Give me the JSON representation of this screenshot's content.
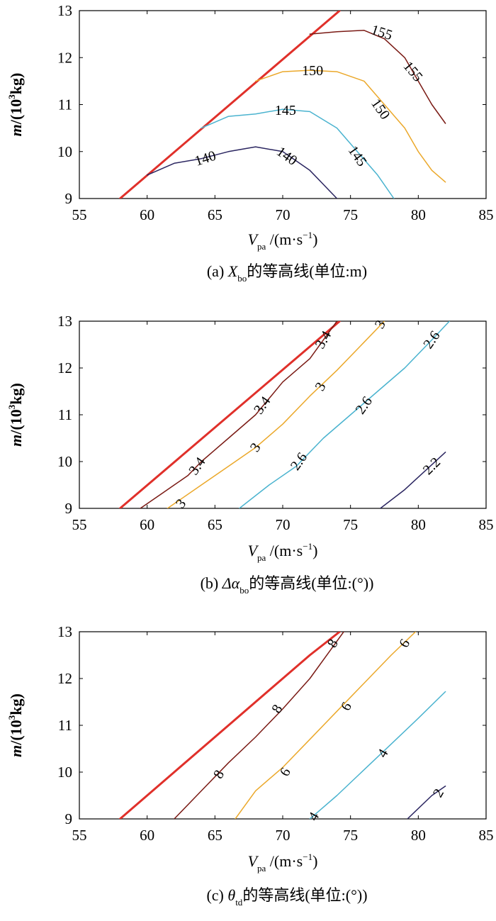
{
  "figure": {
    "axis_x_label": {
      "var": "V",
      "sub": "pa",
      "unit_pre": " /(m·s",
      "unit_sup": "−1",
      "unit_post": ")"
    },
    "axis_y_label": {
      "var": "m",
      "unit_pre": "/(10",
      "unit_sup": "3",
      "unit_post": "kg)"
    }
  },
  "colors": {
    "boundary": "#e0302a",
    "c_darkred": "#7a1a14",
    "c_orange": "#eba82a",
    "c_blue": "#4ab3cf",
    "c_navy": "#2a2560"
  },
  "chart_data": [
    {
      "type": "line",
      "caption": {
        "pre": "(a) ",
        "var": "X",
        "sub": "bo",
        "post": "的等高线(单位:m)"
      },
      "xlim": [
        55,
        85
      ],
      "ylim": [
        9,
        13
      ],
      "x_ticks": [
        55,
        60,
        65,
        70,
        75,
        80,
        85
      ],
      "y_ticks": [
        9,
        10,
        11,
        12,
        13
      ],
      "grid": false,
      "series": [
        {
          "role": "boundary",
          "color": "#e0302a",
          "width": 3,
          "points": [
            [
              58,
              9.0
            ],
            [
              74.2,
              13.0
            ]
          ]
        },
        {
          "color": "#7a1a14",
          "points": [
            [
              72,
              12.5
            ],
            [
              74,
              12.55
            ],
            [
              76,
              12.58
            ],
            [
              77.5,
              12.4
            ],
            [
              79,
              12.0
            ],
            [
              80,
              11.5
            ],
            [
              81,
              11.0
            ],
            [
              82,
              10.6
            ]
          ],
          "labels": [
            {
              "text": "155",
              "x": 77.3,
              "y": 12.53,
              "rot": 18
            },
            {
              "text": "155",
              "x": 79.6,
              "y": 11.7,
              "rot": 50
            }
          ]
        },
        {
          "color": "#eba82a",
          "points": [
            [
              68,
              11.5
            ],
            [
              70,
              11.7
            ],
            [
              72,
              11.73
            ],
            [
              74,
              11.7
            ],
            [
              76,
              11.5
            ],
            [
              77.5,
              11.0
            ],
            [
              79,
              10.5
            ],
            [
              80,
              10.0
            ],
            [
              81,
              9.6
            ],
            [
              82,
              9.35
            ]
          ],
          "labels": [
            {
              "text": "150",
              "x": 72.2,
              "y": 11.72,
              "rot": 0
            },
            {
              "text": "150",
              "x": 77.2,
              "y": 10.9,
              "rot": 55
            }
          ]
        },
        {
          "color": "#4ab3cf",
          "points": [
            [
              64,
              10.5
            ],
            [
              66,
              10.75
            ],
            [
              68,
              10.8
            ],
            [
              70,
              10.9
            ],
            [
              72,
              10.85
            ],
            [
              74,
              10.5
            ],
            [
              75.5,
              10.0
            ],
            [
              77,
              9.5
            ],
            [
              78.2,
              9.0
            ]
          ],
          "labels": [
            {
              "text": "145",
              "x": 70.2,
              "y": 10.87,
              "rot": 0
            },
            {
              "text": "145",
              "x": 75.5,
              "y": 9.9,
              "rot": 55
            }
          ]
        },
        {
          "color": "#2a2560",
          "points": [
            [
              60,
              9.5
            ],
            [
              62,
              9.75
            ],
            [
              64,
              9.85
            ],
            [
              66,
              10.0
            ],
            [
              68,
              10.1
            ],
            [
              70,
              10.0
            ],
            [
              72,
              9.6
            ],
            [
              73,
              9.3
            ],
            [
              74,
              9.0
            ]
          ],
          "labels": [
            {
              "text": "140",
              "x": 64.3,
              "y": 9.85,
              "rot": -18
            },
            {
              "text": "140",
              "x": 70.3,
              "y": 9.9,
              "rot": 35
            }
          ]
        }
      ]
    },
    {
      "type": "line",
      "caption": {
        "pre": "(b) ",
        "var": "Δα",
        "sub": "bo",
        "post": "的等高线(单位:(°))"
      },
      "xlim": [
        55,
        85
      ],
      "ylim": [
        9,
        13
      ],
      "x_ticks": [
        55,
        60,
        65,
        70,
        75,
        80,
        85
      ],
      "y_ticks": [
        9,
        10,
        11,
        12,
        13
      ],
      "grid": false,
      "series": [
        {
          "role": "boundary",
          "color": "#e0302a",
          "width": 3,
          "points": [
            [
              58,
              9.0
            ],
            [
              74.2,
              13.0
            ]
          ]
        },
        {
          "color": "#7a1a14",
          "points": [
            [
              59.5,
              9.0
            ],
            [
              61,
              9.3
            ],
            [
              62,
              9.5
            ],
            [
              63,
              9.7
            ],
            [
              64,
              10.0
            ],
            [
              66,
              10.5
            ],
            [
              68,
              11.0
            ],
            [
              70,
              11.7
            ],
            [
              72,
              12.2
            ],
            [
              73,
              12.6
            ],
            [
              74,
              13.0
            ]
          ],
          "labels": [
            {
              "text": "3.4",
              "x": 73,
              "y": 12.6,
              "rot": -60
            },
            {
              "text": "3.4",
              "x": 68.5,
              "y": 11.2,
              "rot": -55
            },
            {
              "text": "3.4",
              "x": 63.7,
              "y": 9.9,
              "rot": -55
            }
          ]
        },
        {
          "color": "#eba82a",
          "points": [
            [
              61.5,
              9.0
            ],
            [
              64,
              9.5
            ],
            [
              66,
              9.9
            ],
            [
              68,
              10.3
            ],
            [
              70,
              10.8
            ],
            [
              72,
              11.4
            ],
            [
              74,
              11.95
            ],
            [
              76,
              12.55
            ],
            [
              77.5,
              13.0
            ]
          ],
          "labels": [
            {
              "text": "3",
              "x": 77.2,
              "y": 12.93,
              "rot": -60
            },
            {
              "text": "3",
              "x": 72.8,
              "y": 11.6,
              "rot": -60
            },
            {
              "text": "3",
              "x": 68,
              "y": 10.3,
              "rot": -55
            },
            {
              "text": "3",
              "x": 62.5,
              "y": 9.1,
              "rot": -50
            }
          ]
        },
        {
          "color": "#4ab3cf",
          "points": [
            [
              66.8,
              9.0
            ],
            [
              69,
              9.5
            ],
            [
              71,
              9.9
            ],
            [
              73,
              10.5
            ],
            [
              75,
              11.0
            ],
            [
              77,
              11.5
            ],
            [
              79,
              12.0
            ],
            [
              81,
              12.6
            ],
            [
              82.3,
              13.0
            ]
          ],
          "labels": [
            {
              "text": "2.6",
              "x": 81,
              "y": 12.6,
              "rot": -55
            },
            {
              "text": "2.6",
              "x": 76,
              "y": 11.2,
              "rot": -55
            },
            {
              "text": "2.6",
              "x": 71.2,
              "y": 10.0,
              "rot": -55
            }
          ]
        },
        {
          "color": "#2a2560",
          "points": [
            [
              77.2,
              9.0
            ],
            [
              79,
              9.4
            ],
            [
              80.5,
              9.8
            ],
            [
              82,
              10.2
            ]
          ],
          "labels": [
            {
              "text": "2.2",
              "x": 81,
              "y": 9.9,
              "rot": -45
            }
          ]
        }
      ]
    },
    {
      "type": "line",
      "caption": {
        "pre": "(c) ",
        "var": "θ",
        "sub": "td",
        "post": "的等高线(单位:(°))"
      },
      "xlim": [
        55,
        85
      ],
      "ylim": [
        9,
        13
      ],
      "x_ticks": [
        55,
        60,
        65,
        70,
        75,
        80,
        85
      ],
      "y_ticks": [
        9,
        10,
        11,
        12,
        13
      ],
      "grid": false,
      "series": [
        {
          "role": "boundary",
          "color": "#e0302a",
          "width": 3,
          "points": [
            [
              58,
              9.0
            ],
            [
              62,
              10.0
            ],
            [
              66,
              11.0
            ],
            [
              70,
              12.0
            ],
            [
              72,
              12.5
            ],
            [
              74.2,
              13.0
            ]
          ]
        },
        {
          "color": "#7a1a14",
          "points": [
            [
              62,
              9.0
            ],
            [
              64,
              9.6
            ],
            [
              66,
              10.2
            ],
            [
              68,
              10.75
            ],
            [
              70,
              11.35
            ],
            [
              72,
              12.0
            ],
            [
              73.5,
              12.6
            ],
            [
              74.5,
              13.0
            ]
          ],
          "labels": [
            {
              "text": "8",
              "x": 73.7,
              "y": 12.75,
              "rot": -60
            },
            {
              "text": "8",
              "x": 69.6,
              "y": 11.35,
              "rot": -60
            },
            {
              "text": "8",
              "x": 65.3,
              "y": 9.95,
              "rot": -60
            }
          ]
        },
        {
          "color": "#eba82a",
          "points": [
            [
              66.5,
              9.0
            ],
            [
              68,
              9.6
            ],
            [
              70,
              10.1
            ],
            [
              72,
              10.7
            ],
            [
              74,
              11.3
            ],
            [
              76,
              11.9
            ],
            [
              78,
              12.5
            ],
            [
              79.8,
              13.0
            ]
          ],
          "labels": [
            {
              "text": "6",
              "x": 79,
              "y": 12.75,
              "rot": -60
            },
            {
              "text": "6",
              "x": 74.7,
              "y": 11.4,
              "rot": -60
            },
            {
              "text": "6",
              "x": 70.2,
              "y": 10.0,
              "rot": -60
            }
          ]
        },
        {
          "color": "#4ab3cf",
          "points": [
            [
              72,
              9.0
            ],
            [
              74,
              9.5
            ],
            [
              76,
              10.05
            ],
            [
              78,
              10.6
            ],
            [
              80,
              11.15
            ],
            [
              82,
              11.72
            ]
          ],
          "labels": [
            {
              "text": "4",
              "x": 77.4,
              "y": 10.4,
              "rot": -60
            },
            {
              "text": "4",
              "x": 72.3,
              "y": 9.05,
              "rot": -60
            }
          ]
        },
        {
          "color": "#2a2560",
          "points": [
            [
              79.2,
              9.0
            ],
            [
              81,
              9.5
            ],
            [
              82,
              9.7
            ]
          ],
          "labels": [
            {
              "text": "2",
              "x": 81.5,
              "y": 9.55,
              "rot": -60
            }
          ]
        }
      ]
    }
  ]
}
